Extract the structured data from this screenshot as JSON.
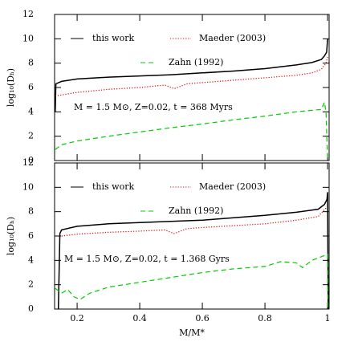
{
  "chart_data": [
    {
      "type": "line",
      "ylabel": "log₁₀(Dₕ)",
      "annotation": "M = 1.5 M⊙, Z=0.02, t = 368 Myrs",
      "xlim": [
        0.128,
        1.005
      ],
      "ylim": [
        0,
        12
      ],
      "xticks": [
        0.2,
        0.4,
        0.6,
        0.8,
        1
      ],
      "yticks": [
        0,
        2,
        4,
        6,
        8,
        10,
        12
      ],
      "series": [
        {
          "name": "this work",
          "color": "#000000",
          "style": "solid",
          "x": [
            0.13,
            0.132,
            0.15,
            0.2,
            0.3,
            0.4,
            0.5,
            0.6,
            0.7,
            0.8,
            0.9,
            0.95,
            0.98,
            0.99,
            0.997,
            1.0
          ],
          "values": [
            4.0,
            6.3,
            6.5,
            6.7,
            6.85,
            6.95,
            7.05,
            7.2,
            7.35,
            7.55,
            7.85,
            8.05,
            8.3,
            8.6,
            8.9,
            10.0
          ]
        },
        {
          "name": "Maeder (2003)",
          "color": "#e00000",
          "style": "dotted",
          "x": [
            0.13,
            0.2,
            0.3,
            0.4,
            0.48,
            0.51,
            0.55,
            0.6,
            0.7,
            0.8,
            0.9,
            0.95,
            0.98,
            0.995,
            1.0
          ],
          "values": [
            5.3,
            5.6,
            5.85,
            6.0,
            6.2,
            5.9,
            6.3,
            6.4,
            6.6,
            6.8,
            7.0,
            7.2,
            7.5,
            8.0,
            8.5
          ]
        },
        {
          "name": "Zahn (1992)",
          "color": "#00cc00",
          "style": "dashed",
          "x": [
            0.13,
            0.15,
            0.2,
            0.3,
            0.4,
            0.5,
            0.6,
            0.7,
            0.8,
            0.9,
            0.98,
            0.99,
            0.995,
            1.0
          ],
          "values": [
            0.9,
            1.3,
            1.6,
            2.0,
            2.35,
            2.7,
            3.0,
            3.35,
            3.65,
            4.0,
            4.2,
            4.8,
            4.0,
            0.0
          ]
        }
      ]
    },
    {
      "type": "line",
      "ylabel": "log₁₀(Dₕ)",
      "xlabel": "M/M*",
      "annotation": "M = 1.5 M⊙, Z=0.02, t = 1.368 Gyrs",
      "xlim": [
        0.128,
        1.005
      ],
      "ylim": [
        0,
        12
      ],
      "xticks": [
        0.2,
        0.4,
        0.6,
        0.8,
        1
      ],
      "yticks": [
        0,
        2,
        4,
        6,
        8,
        10,
        12
      ],
      "series": [
        {
          "name": "this work",
          "color": "#000000",
          "style": "solid",
          "x": [
            0.14,
            0.145,
            0.15,
            0.2,
            0.3,
            0.4,
            0.5,
            0.6,
            0.7,
            0.8,
            0.9,
            0.97,
            0.99,
            0.998,
            1.0,
            1.002
          ],
          "values": [
            0.0,
            6.2,
            6.5,
            6.8,
            7.0,
            7.1,
            7.2,
            7.3,
            7.5,
            7.7,
            7.95,
            8.2,
            8.6,
            9.0,
            9.6,
            0.0
          ]
        },
        {
          "name": "Maeder (2003)",
          "color": "#e00000",
          "style": "dotted",
          "x": [
            0.15,
            0.2,
            0.3,
            0.4,
            0.48,
            0.51,
            0.55,
            0.6,
            0.7,
            0.8,
            0.9,
            0.97,
            0.995
          ],
          "values": [
            6.0,
            6.15,
            6.3,
            6.4,
            6.5,
            6.2,
            6.6,
            6.7,
            6.85,
            7.0,
            7.3,
            7.6,
            8.3
          ]
        },
        {
          "name": "Zahn (1992)",
          "color": "#00cc00",
          "style": "dashed",
          "x": [
            0.13,
            0.15,
            0.17,
            0.19,
            0.21,
            0.24,
            0.3,
            0.4,
            0.5,
            0.6,
            0.7,
            0.8,
            0.85,
            0.9,
            0.92,
            0.95,
            0.98,
            1.0,
            1.001
          ],
          "values": [
            1.7,
            1.3,
            1.6,
            1.0,
            0.8,
            1.3,
            1.8,
            2.2,
            2.6,
            3.0,
            3.3,
            3.5,
            3.9,
            3.8,
            3.4,
            4.0,
            4.3,
            4.5,
            0.0
          ]
        }
      ]
    }
  ]
}
